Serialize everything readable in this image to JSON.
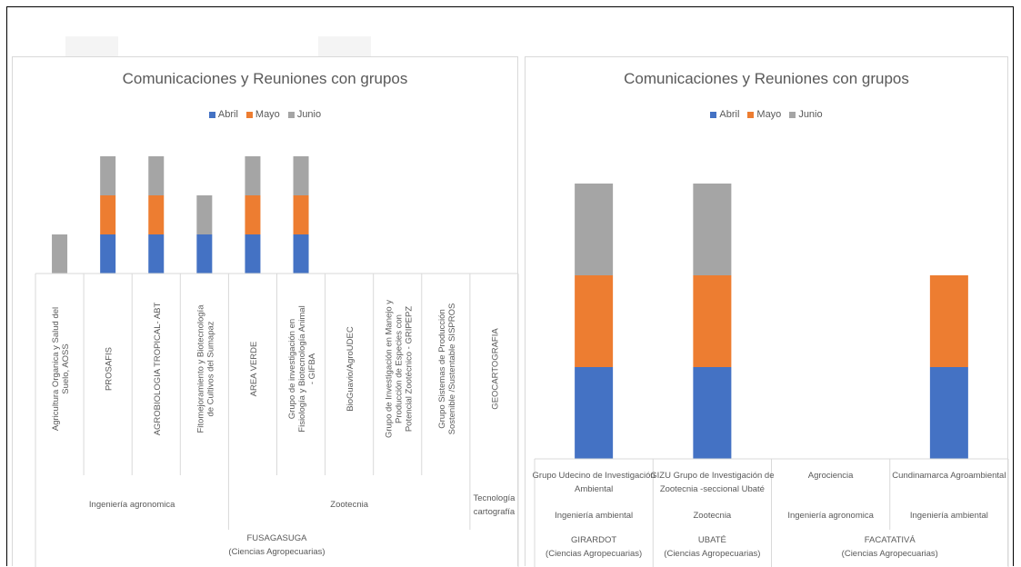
{
  "colors": {
    "abril": "#4472C4",
    "mayo": "#ED7D31",
    "junio": "#A5A5A5",
    "axis": "#d9d9d9",
    "text": "#595959"
  },
  "chart_data": [
    {
      "type": "bar",
      "stacked": true,
      "title": "Comunicaciones y Reuniones con grupos",
      "legend_position": "top",
      "legend": [
        "Abril",
        "Mayo",
        "Junio"
      ],
      "categories": [
        "Agricultura Organica y Salud del Suelo, AOSS",
        "PROSAFIS",
        "AGROBIOLOGIA TROPICAL- ABT",
        "Fitomejoramiento y Biotecnología de Cultivos del Sumapaz",
        "AREA VERDE",
        "Grupo de investigación en Fisiología y Biotecnología Animal - GIFBA",
        "BioGuavio/AgroUDEC",
        "Grupo de Investigación en Manejo y Producción de Especies con Potencial Zootécnico - GRIPEPZ",
        "Grupo Sistemas de Producción Sostenible /Sustentable SISPROS",
        "GEOCARTOGRAFIA"
      ],
      "series": [
        {
          "name": "Abril",
          "values": [
            0,
            1,
            1,
            1,
            1,
            1,
            0,
            0,
            0,
            0
          ]
        },
        {
          "name": "Mayo",
          "values": [
            0,
            1,
            1,
            0,
            1,
            1,
            0,
            0,
            0,
            0
          ]
        },
        {
          "name": "Junio",
          "values": [
            1,
            1,
            1,
            1,
            1,
            1,
            0,
            0,
            0,
            0
          ]
        }
      ],
      "program_groups": [
        {
          "label": "Ingeniería agronomica",
          "count": 4
        },
        {
          "label": "Zootecnia",
          "count": 5
        },
        {
          "label": "Tecnología cartografía",
          "count": 1
        }
      ],
      "site_groups": [
        {
          "label": "FUSAGASUGA (Ciencias Agropecuarias)",
          "count": 10
        }
      ],
      "ylim": [
        0,
        3
      ],
      "grid": false
    },
    {
      "type": "bar",
      "stacked": true,
      "title": "Comunicaciones y Reuniones con grupos",
      "legend_position": "top",
      "legend": [
        "Abril",
        "Mayo",
        "Junio"
      ],
      "categories": [
        "Grupo Udecino de Investigación Ambiental",
        "GIZU Grupo de Investigación de Zootecnia -seccional Ubaté",
        "Agrociencia",
        "Cundinamarca Agroambiental"
      ],
      "series": [
        {
          "name": "Abril",
          "values": [
            1,
            1,
            0,
            1
          ]
        },
        {
          "name": "Mayo",
          "values": [
            1,
            1,
            0,
            1
          ]
        },
        {
          "name": "Junio",
          "values": [
            1,
            1,
            0,
            0
          ]
        }
      ],
      "program_groups": [
        {
          "label": "Ingeniería ambiental",
          "count": 1
        },
        {
          "label": "Zootecnia",
          "count": 1
        },
        {
          "label": "Ingeniería agronomica",
          "count": 1
        },
        {
          "label": "Ingeniería ambiental",
          "count": 1
        }
      ],
      "site_groups": [
        {
          "label": "GIRARDOT (Ciencias Agropecuarias)",
          "count": 1
        },
        {
          "label": "UBATÉ (Ciencias Agropecuarias)",
          "count": 1
        },
        {
          "label": "FACATATIVÁ (Ciencias Agropecuarias)",
          "count": 2
        }
      ],
      "ylim": [
        0,
        3
      ],
      "grid": false
    }
  ]
}
